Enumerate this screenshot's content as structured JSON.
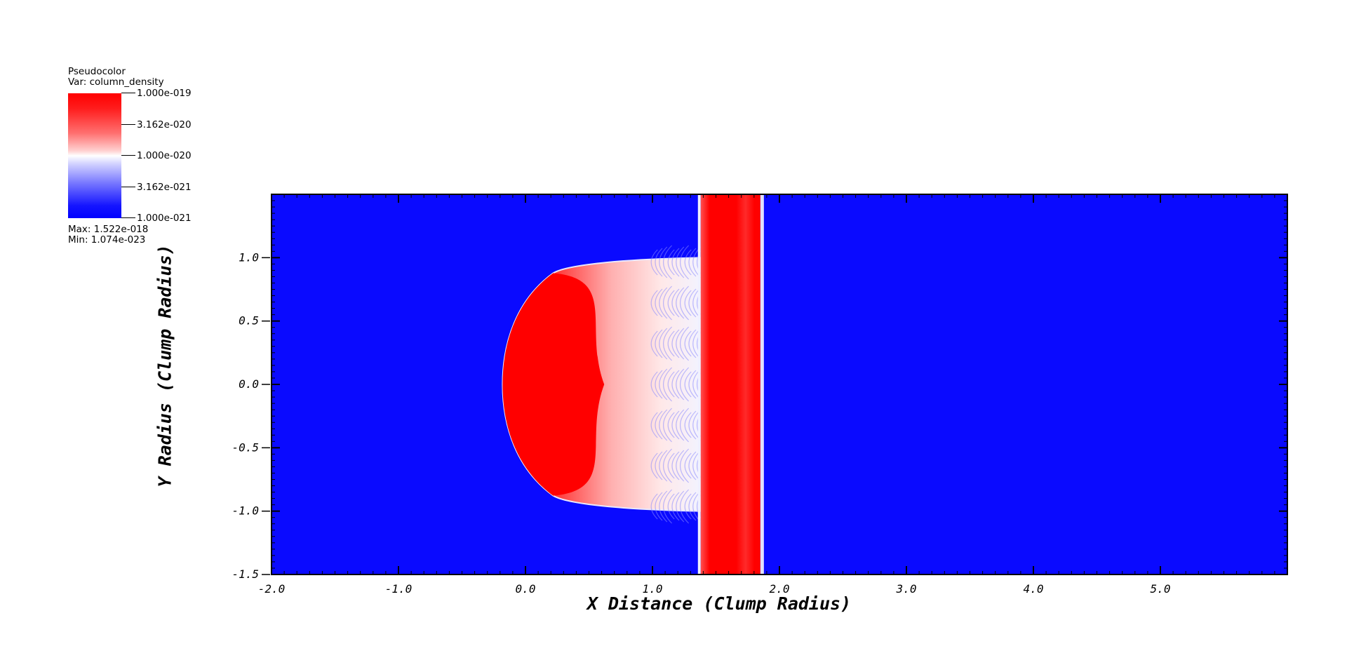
{
  "legend": {
    "plot_type": "Pseudocolor",
    "var_line": "Var: column_density",
    "ticks": [
      "1.000e-019",
      "3.162e-020",
      "1.000e-020",
      "3.162e-021",
      "1.000e-021"
    ],
    "max_line": "Max:  1.522e-018",
    "min_line": "Min:  1.074e-023",
    "colors": {
      "high": "#ff0000",
      "mid": "#ffffff",
      "low": "#0000ff"
    }
  },
  "chart_data": {
    "type": "heatmap",
    "xlabel": "X Distance (Clump Radius)",
    "ylabel": "Y Radius (Clump Radius)",
    "xlim": [
      -2.0,
      6.0
    ],
    "ylim": [
      -1.5,
      1.5
    ],
    "x_ticks": [
      "-2.0",
      "-1.0",
      "0.0",
      "1.0",
      "2.0",
      "3.0",
      "4.0",
      "5.0"
    ],
    "x_tick_values": [
      -2.0,
      -1.0,
      0.0,
      1.0,
      2.0,
      3.0,
      4.0,
      5.0
    ],
    "y_ticks": [
      "-1.5",
      "-1.0",
      "-0.5",
      "0.0",
      "0.5",
      "1.0"
    ],
    "y_tick_values": [
      -1.5,
      -1.0,
      -0.5,
      0.0,
      0.5,
      1.0
    ],
    "background_color": "#0a0aff",
    "features": {
      "clump": {
        "x_left": -0.18,
        "x_right": 1.38,
        "y_half": 1.0,
        "core_x_end": 0.62
      },
      "slab": {
        "x_left": 1.38,
        "x_right": 1.85
      }
    },
    "scale": "log"
  }
}
